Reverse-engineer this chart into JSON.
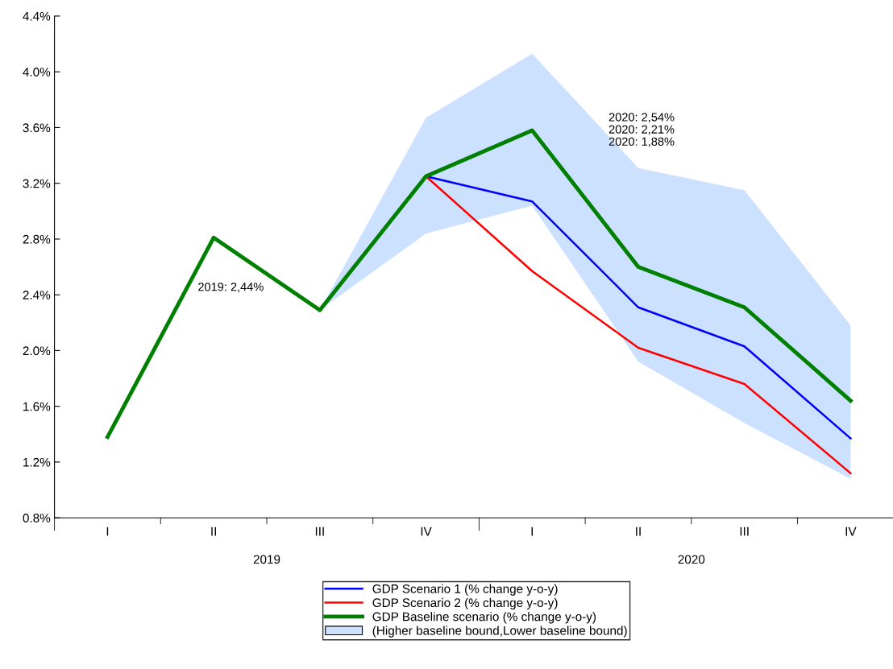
{
  "chart_data": {
    "type": "line",
    "categories": [
      "I",
      "II",
      "III",
      "IV",
      "I",
      "II",
      "III",
      "IV"
    ],
    "series": [
      {
        "name": "(Higher baseline bound,Lower baseline bound)",
        "color": "#cce0ff",
        "values": [
          null,
          null,
          null,
          null,
          null,
          null,
          null,
          null
        ],
        "lower": [
          null,
          null,
          2.29,
          2.84,
          3.04,
          1.92,
          1.48,
          1.08
        ],
        "upper": [
          null,
          null,
          2.29,
          3.67,
          4.13,
          3.31,
          3.15,
          2.18
        ]
      },
      {
        "name": "GDP Scenario 1 (% change y-o-y)",
        "color": "#0000ff",
        "values": [
          null,
          null,
          null,
          3.25,
          3.07,
          2.31,
          2.03,
          1.37
        ]
      },
      {
        "name": "GDP Scenario 2 (% change y-o-y)",
        "color": "#ff0000",
        "values": [
          null,
          null,
          null,
          3.25,
          2.57,
          2.02,
          1.76,
          1.12
        ]
      },
      {
        "name": "GDP Baseline scenario (% change y-o-y)",
        "color": "#008000",
        "values": [
          1.38,
          2.81,
          2.29,
          3.25,
          3.58,
          2.6,
          2.31,
          1.64
        ]
      }
    ],
    "ylim": [
      0.8,
      4.4
    ],
    "yticks": [
      {
        "value": 0.8,
        "label": "0.8%"
      },
      {
        "value": 1.2,
        "label": "1.2%"
      },
      {
        "value": 1.6,
        "label": "1.6%"
      },
      {
        "value": 2.0,
        "label": "2.0%"
      },
      {
        "value": 2.4,
        "label": "2.4%"
      },
      {
        "value": 2.8,
        "label": "2.8%"
      },
      {
        "value": 3.2,
        "label": "3.2%"
      },
      {
        "value": 3.6,
        "label": "3.6%"
      },
      {
        "value": 4.0,
        "label": "4.0%"
      },
      {
        "value": 4.4,
        "label": "4.4%"
      }
    ],
    "annotations": [
      "2019",
      "2020",
      "2019: 2,44%",
      "2020: 2,54%\n2020: 2,21%\n2020: 1,88%"
    ],
    "grid": false,
    "legend": "bottom"
  }
}
